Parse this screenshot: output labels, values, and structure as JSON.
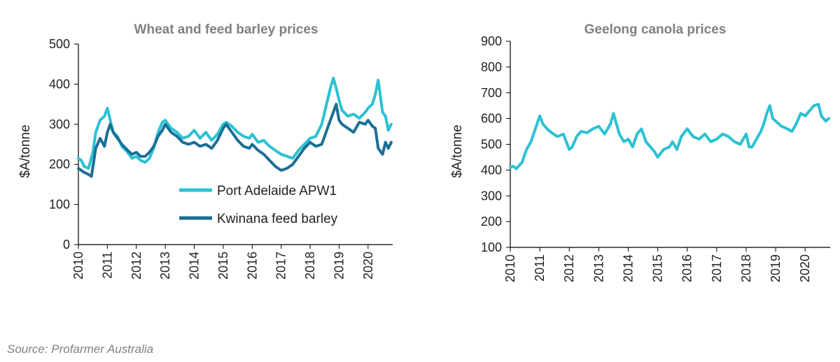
{
  "source": "Source: Profarmer Australia",
  "colors": {
    "apw1": "#2cc1d3",
    "barley": "#1a6f95",
    "canola": "#2cc1d3",
    "axis": "#000000"
  },
  "chart_data": [
    {
      "type": "line",
      "title": "Wheat and feed barley prices",
      "ylabel": "$A/tonne",
      "xlabel": "",
      "ylim": [
        0,
        500
      ],
      "yticks": [
        0,
        100,
        200,
        300,
        400,
        500
      ],
      "xlim": [
        2010,
        2020.85
      ],
      "xticks": [
        2010,
        2011,
        2012,
        2013,
        2014,
        2015,
        2016,
        2017,
        2018,
        2019,
        2020
      ],
      "grid": false,
      "legend_position": "bottom-right",
      "series": [
        {
          "name": "Port Adelaide APW1",
          "color": "#2cc1d3",
          "x": [
            2010.0,
            2010.1,
            2010.2,
            2010.35,
            2010.5,
            2010.6,
            2010.75,
            2010.9,
            2011.0,
            2011.1,
            2011.2,
            2011.35,
            2011.5,
            2011.7,
            2011.85,
            2012.0,
            2012.15,
            2012.3,
            2012.45,
            2012.6,
            2012.75,
            2012.9,
            2013.0,
            2013.2,
            2013.4,
            2013.6,
            2013.8,
            2014.0,
            2014.2,
            2014.4,
            2014.6,
            2014.8,
            2015.0,
            2015.1,
            2015.3,
            2015.5,
            2015.7,
            2015.9,
            2016.0,
            2016.2,
            2016.4,
            2016.6,
            2016.8,
            2017.0,
            2017.2,
            2017.4,
            2017.6,
            2017.8,
            2018.0,
            2018.2,
            2018.4,
            2018.6,
            2018.7,
            2018.8,
            2018.9,
            2019.0,
            2019.1,
            2019.3,
            2019.5,
            2019.7,
            2019.9,
            2020.0,
            2020.15,
            2020.25,
            2020.35,
            2020.5,
            2020.6,
            2020.7,
            2020.8
          ],
          "values": [
            215,
            210,
            195,
            190,
            230,
            280,
            310,
            320,
            340,
            310,
            280,
            270,
            245,
            230,
            215,
            220,
            210,
            205,
            215,
            240,
            280,
            305,
            310,
            290,
            280,
            265,
            270,
            285,
            265,
            280,
            260,
            275,
            300,
            305,
            295,
            280,
            270,
            265,
            275,
            255,
            260,
            245,
            235,
            225,
            220,
            215,
            235,
            250,
            265,
            270,
            300,
            360,
            390,
            415,
            390,
            360,
            335,
            320,
            325,
            315,
            330,
            340,
            350,
            375,
            410,
            330,
            320,
            285,
            300
          ]
        },
        {
          "name": "Kwinana feed barley",
          "color": "#1a6f95",
          "x": [
            2010.0,
            2010.1,
            2010.2,
            2010.35,
            2010.45,
            2010.6,
            2010.75,
            2010.9,
            2011.0,
            2011.1,
            2011.2,
            2011.35,
            2011.5,
            2011.7,
            2011.85,
            2012.0,
            2012.15,
            2012.3,
            2012.45,
            2012.6,
            2012.75,
            2012.9,
            2013.0,
            2013.2,
            2013.4,
            2013.6,
            2013.8,
            2014.0,
            2014.2,
            2014.4,
            2014.6,
            2014.8,
            2015.0,
            2015.1,
            2015.3,
            2015.5,
            2015.7,
            2015.9,
            2016.0,
            2016.2,
            2016.4,
            2016.6,
            2016.8,
            2017.0,
            2017.2,
            2017.4,
            2017.6,
            2017.8,
            2018.0,
            2018.2,
            2018.4,
            2018.6,
            2018.7,
            2018.8,
            2018.9,
            2019.0,
            2019.1,
            2019.3,
            2019.5,
            2019.7,
            2019.9,
            2020.0,
            2020.15,
            2020.25,
            2020.35,
            2020.5,
            2020.6,
            2020.7,
            2020.8
          ],
          "values": [
            190,
            185,
            180,
            175,
            170,
            240,
            265,
            245,
            280,
            300,
            280,
            265,
            250,
            235,
            225,
            230,
            220,
            220,
            230,
            245,
            270,
            285,
            300,
            280,
            270,
            255,
            250,
            255,
            245,
            250,
            240,
            260,
            290,
            300,
            280,
            260,
            245,
            240,
            250,
            235,
            225,
            210,
            195,
            185,
            190,
            200,
            220,
            240,
            255,
            245,
            250,
            290,
            310,
            330,
            350,
            310,
            300,
            290,
            280,
            305,
            300,
            310,
            295,
            290,
            240,
            225,
            255,
            240,
            255
          ]
        }
      ]
    },
    {
      "type": "line",
      "title": "Geelong canola prices",
      "ylabel": "$A/tonne",
      "xlabel": "",
      "ylim": [
        100,
        900
      ],
      "yticks": [
        100,
        200,
        300,
        400,
        500,
        600,
        700,
        800,
        900
      ],
      "xlim": [
        2010,
        2020.85
      ],
      "xticks": [
        2010,
        2011,
        2012,
        2013,
        2014,
        2015,
        2016,
        2017,
        2018,
        2019,
        2020
      ],
      "grid": false,
      "series": [
        {
          "color": "#2cc1d3",
          "x": [
            2010.0,
            2010.1,
            2010.2,
            2010.4,
            2010.55,
            2010.7,
            2010.85,
            2011.0,
            2011.1,
            2011.25,
            2011.4,
            2011.6,
            2011.8,
            2012.0,
            2012.1,
            2012.25,
            2012.4,
            2012.6,
            2012.8,
            2013.0,
            2013.2,
            2013.4,
            2013.5,
            2013.7,
            2013.85,
            2014.0,
            2014.15,
            2014.3,
            2014.45,
            2014.6,
            2014.75,
            2014.9,
            2015.0,
            2015.2,
            2015.4,
            2015.5,
            2015.65,
            2015.8,
            2016.0,
            2016.2,
            2016.4,
            2016.6,
            2016.8,
            2017.0,
            2017.2,
            2017.4,
            2017.6,
            2017.8,
            2018.0,
            2018.1,
            2018.2,
            2018.35,
            2018.5,
            2018.6,
            2018.7,
            2018.8,
            2018.9,
            2019.0,
            2019.2,
            2019.4,
            2019.55,
            2019.7,
            2019.85,
            2020.0,
            2020.15,
            2020.3,
            2020.45,
            2020.55,
            2020.7,
            2020.8
          ],
          "values": [
            410,
            415,
            405,
            430,
            480,
            510,
            560,
            610,
            580,
            560,
            545,
            530,
            540,
            480,
            490,
            530,
            550,
            545,
            560,
            570,
            540,
            580,
            620,
            540,
            510,
            520,
            490,
            540,
            560,
            510,
            490,
            470,
            450,
            480,
            490,
            510,
            480,
            530,
            560,
            530,
            520,
            540,
            510,
            520,
            540,
            530,
            510,
            500,
            540,
            490,
            490,
            520,
            550,
            580,
            620,
            650,
            600,
            590,
            570,
            560,
            550,
            580,
            620,
            610,
            630,
            650,
            655,
            610,
            590,
            600
          ]
        }
      ]
    }
  ]
}
